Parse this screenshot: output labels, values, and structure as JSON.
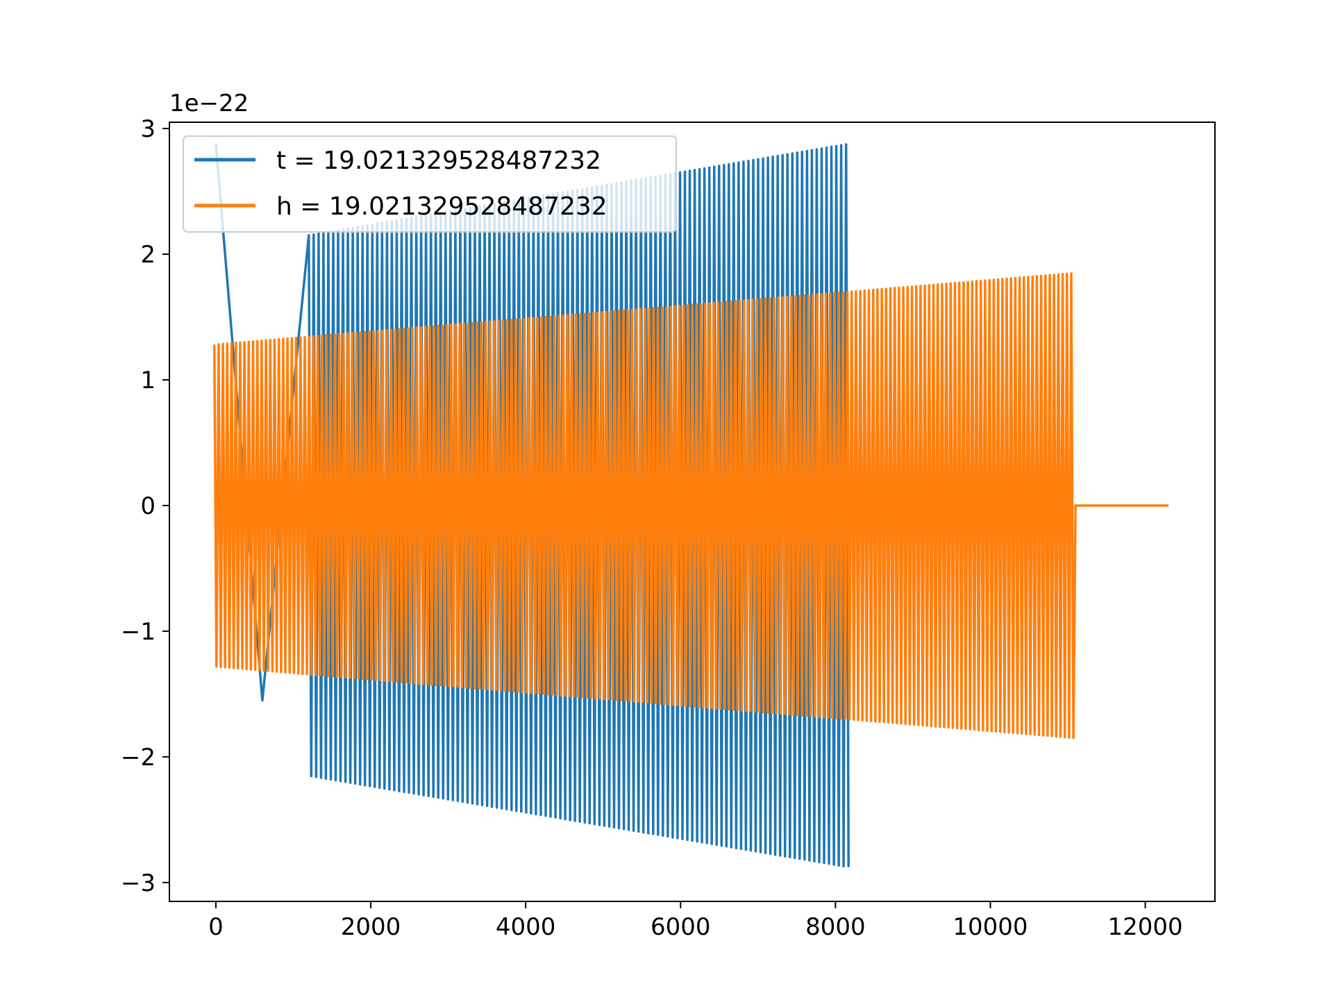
{
  "chart_data": {
    "type": "line",
    "title": "",
    "xlabel": "",
    "ylabel": "",
    "y_offset_text": "1e−22",
    "xlim": [
      -600,
      12900
    ],
    "ylim": [
      -3.15,
      3.05
    ],
    "x_ticks": [
      0,
      2000,
      4000,
      6000,
      8000,
      10000,
      12000
    ],
    "x_tick_labels": [
      "0",
      "2000",
      "4000",
      "6000",
      "8000",
      "10000",
      "12000"
    ],
    "y_ticks": [
      -3,
      -2,
      -1,
      0,
      1,
      2,
      3
    ],
    "y_tick_labels": [
      "−3",
      "−2",
      "−1",
      "0",
      "1",
      "2",
      "3"
    ],
    "grid": false,
    "legend": "upper-left",
    "series": [
      {
        "name": "t = 19.021329528487232",
        "color": "#1f77b4",
        "style": "dense-oscillation",
        "cycles": 130,
        "segments": [
          {
            "x": [
              0,
              1200
            ],
            "y_max": [
              2.88,
              2.88
            ],
            "y_min": [
              -1.55,
              -1.55
            ],
            "cycles": 1
          },
          {
            "x": [
              1200,
              8200
            ],
            "y_max": [
              2.15,
              2.88
            ],
            "y_min": [
              -2.15,
              -2.88
            ]
          }
        ]
      },
      {
        "name": "h = 19.021329528487232",
        "color": "#ff7f0e",
        "style": "dense-oscillation",
        "cycles": 200,
        "segments": [
          {
            "x": [
              -20,
              11100
            ],
            "y_max": [
              1.28,
              1.85
            ],
            "y_min": [
              -1.28,
              -1.85
            ]
          },
          {
            "x": [
              11100,
              12300
            ],
            "y": 0
          }
        ]
      }
    ]
  }
}
